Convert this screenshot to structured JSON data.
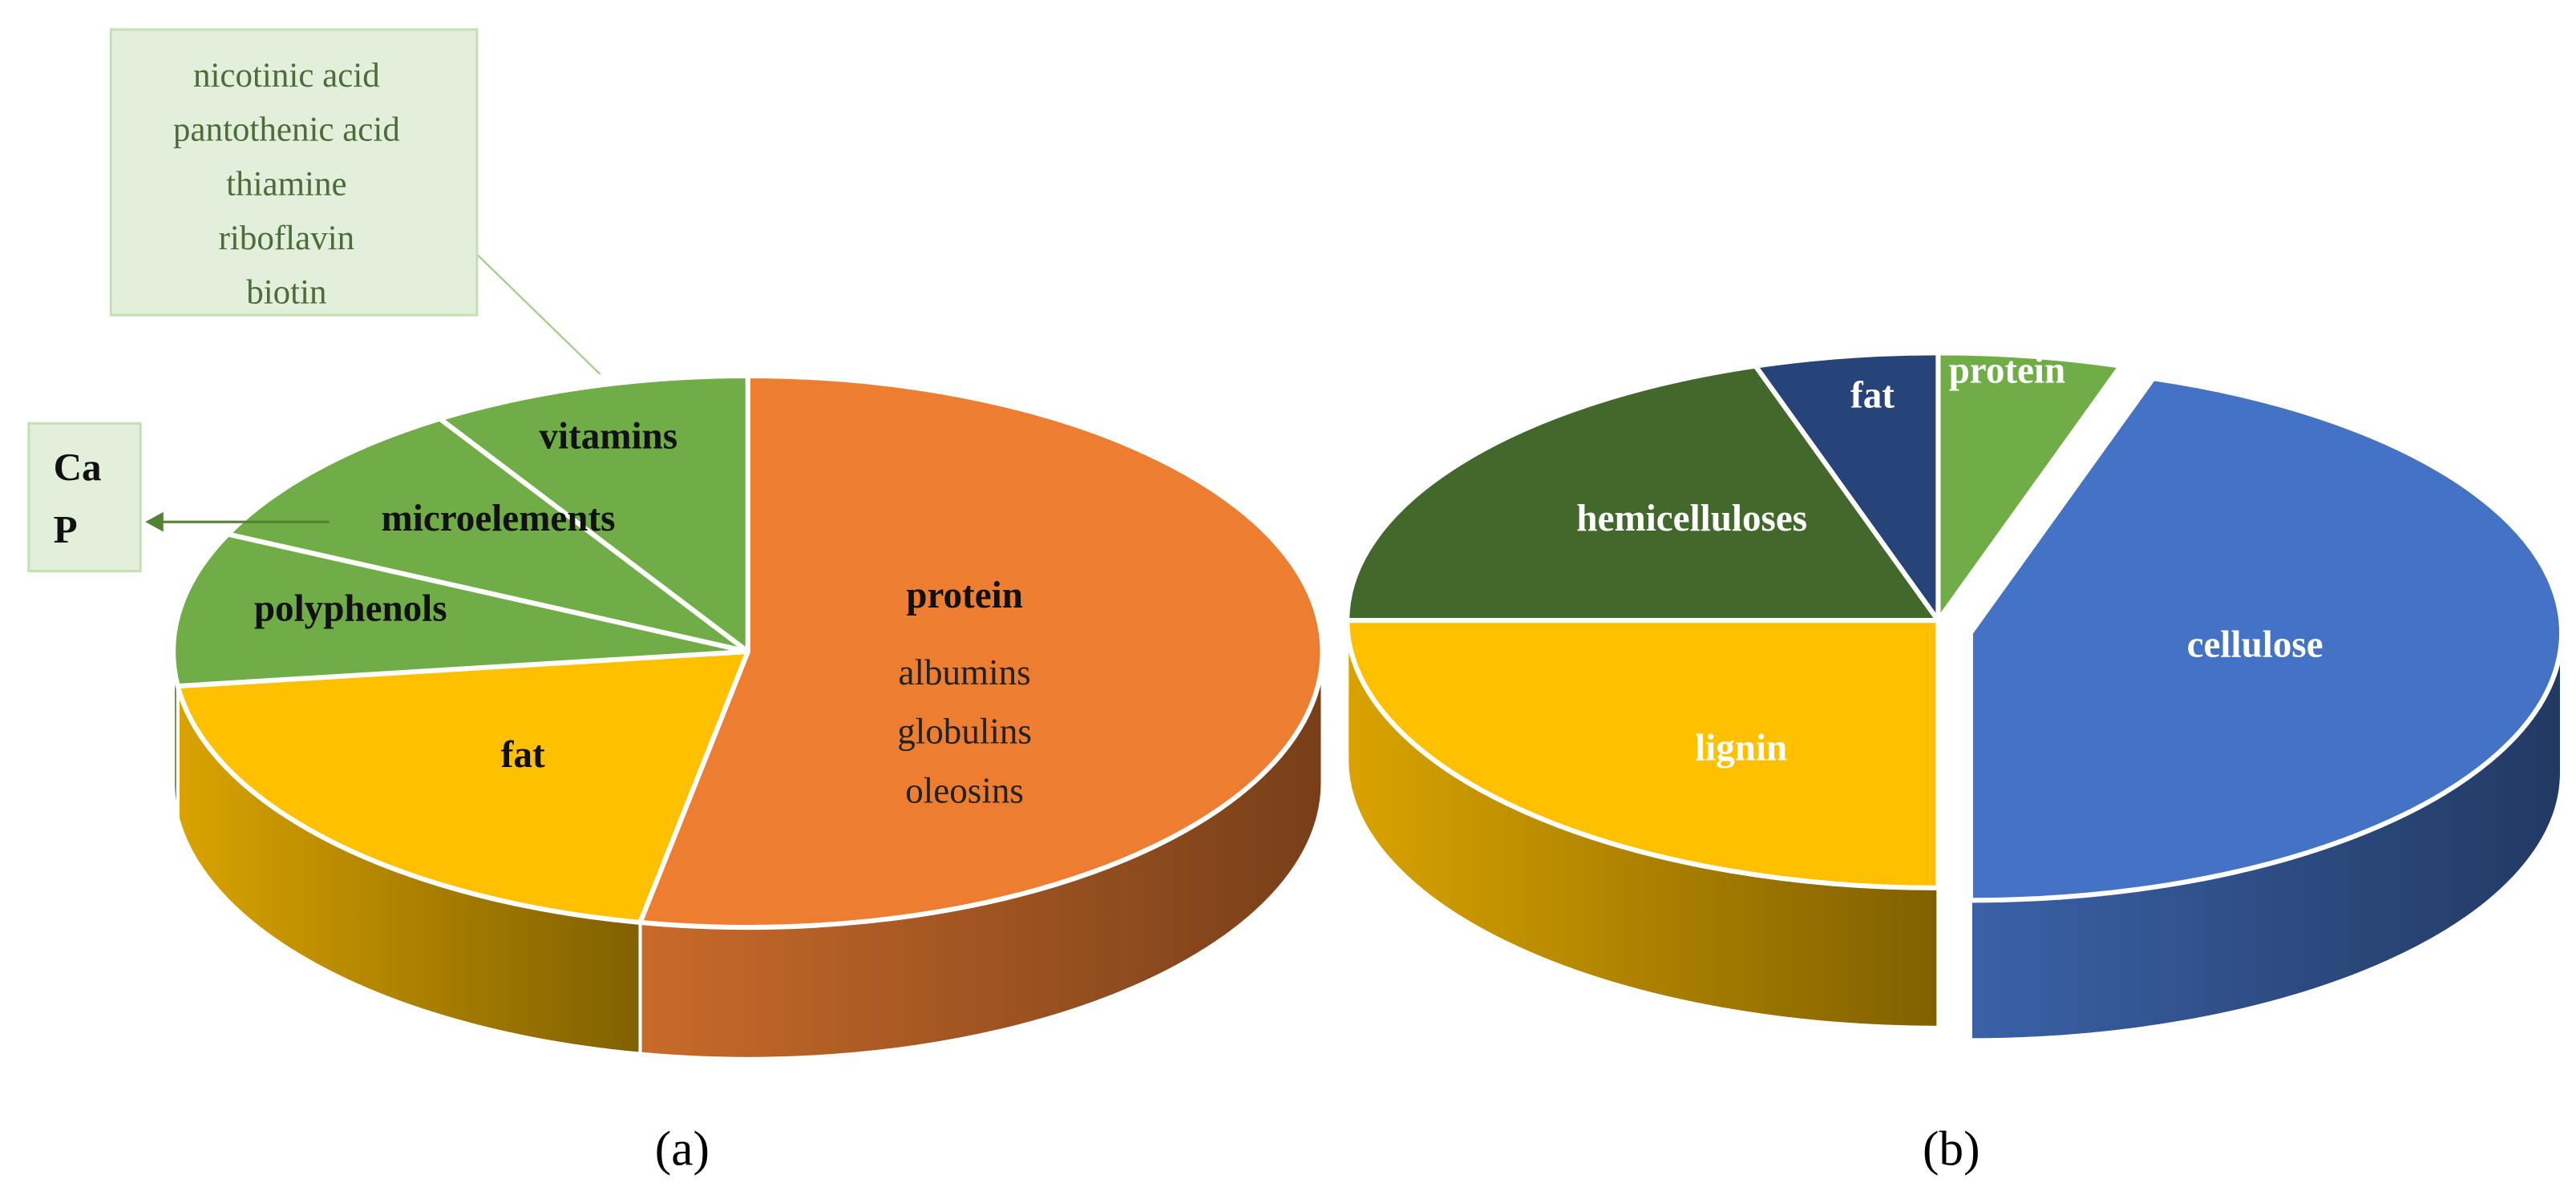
{
  "chart_data": [
    {
      "type": "pie",
      "caption": "(a)",
      "categories": [
        "protein",
        "fat",
        "polyphenols",
        "microelements",
        "vitamins"
      ],
      "values": [
        53,
        20,
        9,
        9,
        9
      ],
      "colors": [
        "#ED7D31",
        "#FFC000",
        "#70AD47",
        "#70AD47",
        "#70AD47"
      ],
      "label_color": "#111111",
      "protein_details": [
        "albumins",
        "globulins",
        "oleosins"
      ],
      "vitamins_details": [
        "nicotinic acid",
        "pantothenic acid",
        "thiamine",
        "riboflavin",
        "biotin"
      ],
      "microelements_details": [
        "Ca",
        "P"
      ]
    },
    {
      "type": "pie",
      "caption": "(b)",
      "categories": [
        "protein",
        "cellulose",
        "lignin",
        "hemicelluloses",
        "fat"
      ],
      "values": [
        5,
        45,
        25,
        20,
        5
      ],
      "colors": [
        "#70AD47",
        "#4472C4",
        "#FFC000",
        "#43682B",
        "#264478"
      ],
      "label_color": "#ffffff",
      "exploded": [
        false,
        true,
        false,
        false,
        false
      ]
    }
  ]
}
